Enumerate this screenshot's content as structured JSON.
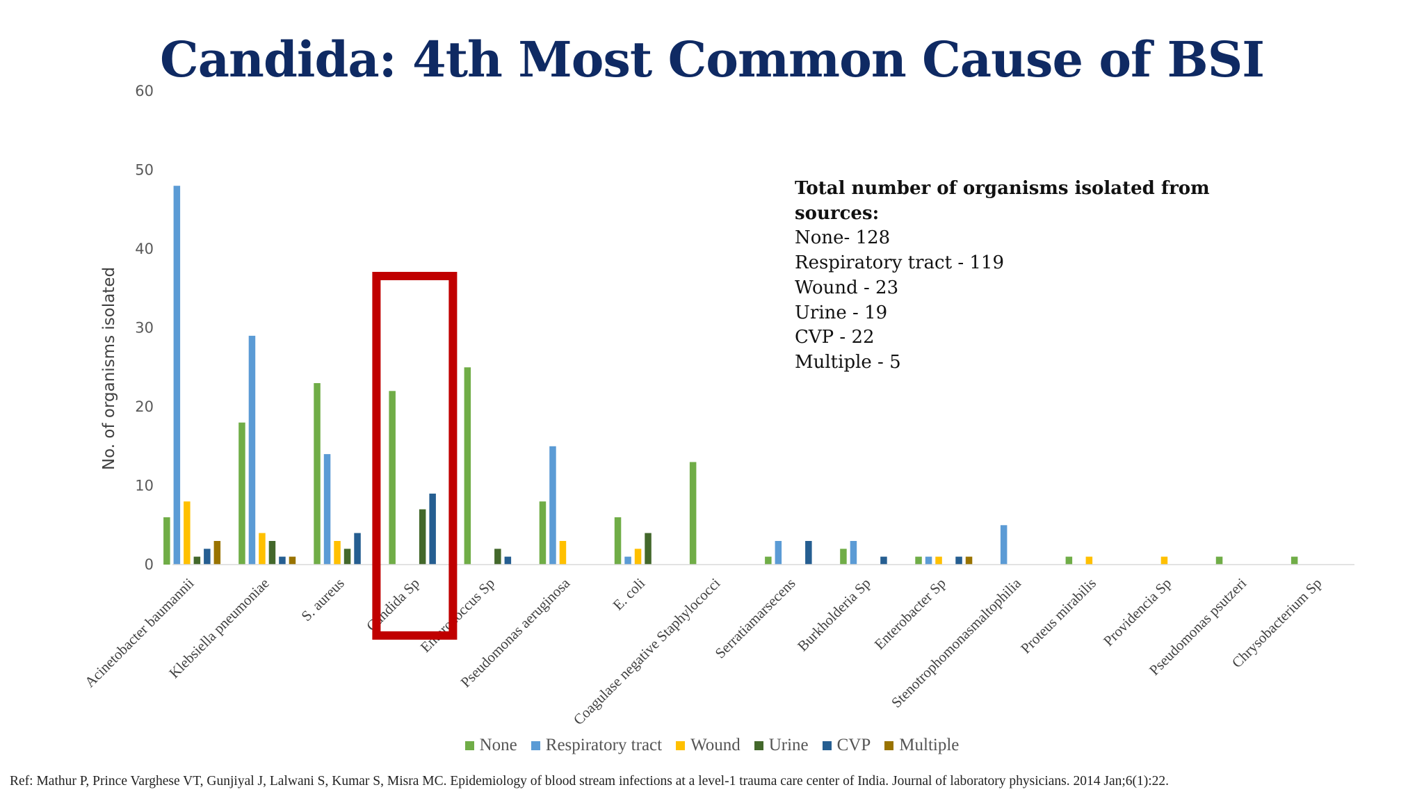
{
  "title": "Candida: 4th Most Common Cause of BSI",
  "annotation": {
    "heading": "Total number of organisms isolated from sources:",
    "lines": [
      "None- 128",
      "Respiratory tract - 119",
      "Wound - 23",
      "Urine - 19",
      "CVP - 22",
      "Multiple - 5"
    ]
  },
  "reference": "Ref: Mathur P, Prince Varghese VT, Gunjiyal J, Lalwani S, Kumar S, Misra MC. Epidemiology of blood stream infections at a level-1 trauma care center of India. Journal of laboratory physicians. 2014 Jan;6(1):22.",
  "highlight": {
    "category": "Candida Sp",
    "color": "#c00000"
  },
  "chart_data": {
    "type": "bar",
    "title": "",
    "xlabel": "",
    "ylabel": "No. of organisms isolated",
    "ylim": [
      0,
      60
    ],
    "yticks": [
      0,
      10,
      20,
      30,
      40,
      50,
      60
    ],
    "grid": false,
    "legend_position": "bottom",
    "categories": [
      "Acinetobacter baumannii",
      "Klebsiella pneumoniae",
      "S. aureus",
      "Candida Sp",
      "Enterococcus Sp",
      "Pseudomonas aeruginosa",
      "E. coli",
      "Coagulase negative Staphylococci",
      "Serratiamarsecens",
      "Burkholderia Sp",
      "Enterobacter Sp",
      "Stenotrophomonasmaltophilia",
      "Proteus mirabilis",
      "Providencia Sp",
      "Pseudomonas psutzeri",
      "Chrysobacterium Sp"
    ],
    "series": [
      {
        "name": "None",
        "color": "#70ad47",
        "values": [
          6,
          18,
          23,
          22,
          25,
          8,
          6,
          13,
          1,
          2,
          1,
          0,
          1,
          0,
          1,
          1
        ]
      },
      {
        "name": "Respiratory tract",
        "color": "#5b9bd5",
        "values": [
          48,
          29,
          14,
          0,
          0,
          15,
          1,
          0,
          3,
          3,
          1,
          5,
          0,
          0,
          0,
          0
        ]
      },
      {
        "name": "Wound",
        "color": "#ffc000",
        "values": [
          8,
          4,
          3,
          0,
          0,
          3,
          2,
          0,
          0,
          0,
          1,
          0,
          1,
          1,
          0,
          0
        ]
      },
      {
        "name": "Urine",
        "color": "#43682b",
        "values": [
          1,
          3,
          2,
          7,
          2,
          0,
          4,
          0,
          0,
          0,
          0,
          0,
          0,
          0,
          0,
          0
        ]
      },
      {
        "name": "CVP",
        "color": "#255e91",
        "values": [
          2,
          1,
          4,
          9,
          1,
          0,
          0,
          0,
          3,
          1,
          1,
          0,
          0,
          0,
          0,
          0
        ]
      },
      {
        "name": "Multiple",
        "color": "#997300",
        "values": [
          3,
          1,
          0,
          0,
          0,
          0,
          0,
          0,
          0,
          0,
          1,
          0,
          0,
          0,
          0,
          0
        ]
      }
    ]
  }
}
